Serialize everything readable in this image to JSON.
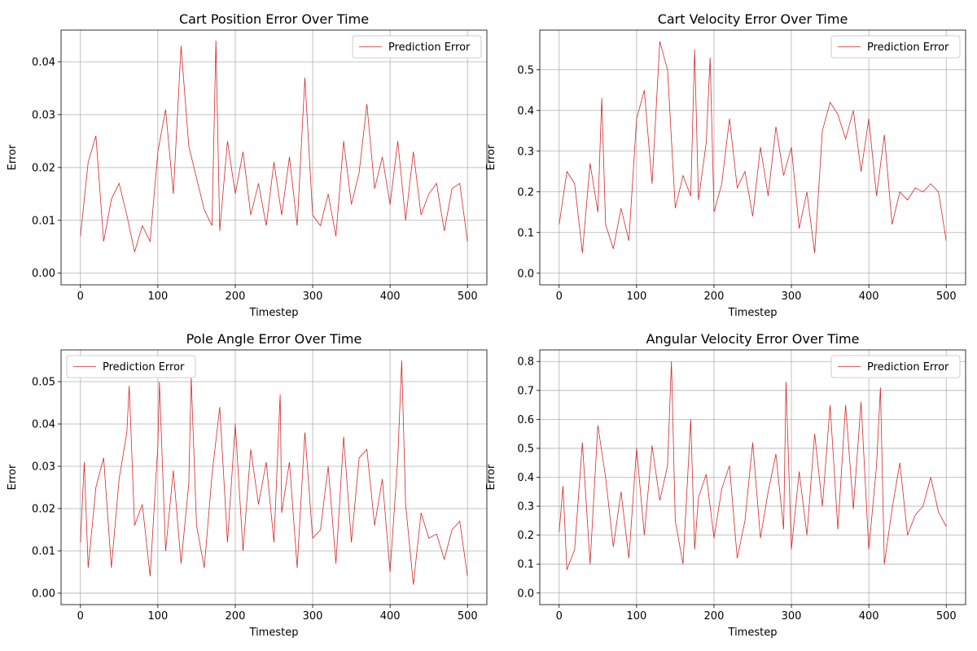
{
  "chart_data": [
    {
      "type": "line",
      "title": "Cart Position Error Over Time",
      "xlabel": "Timestep",
      "ylabel": "Error",
      "xlim": [
        -25,
        525
      ],
      "ylim": [
        -0.0022,
        0.046
      ],
      "x_ticks": [
        0,
        100,
        200,
        300,
        400,
        500
      ],
      "y_ticks": [
        0.0,
        0.01,
        0.02,
        0.03,
        0.04
      ],
      "y_tick_labels": [
        "0.00",
        "0.01",
        "0.02",
        "0.03",
        "0.04"
      ],
      "legend": "top-right",
      "grid": true,
      "series": [
        {
          "name": "Prediction Error",
          "color": "#d62728",
          "x": [
            0,
            10,
            20,
            30,
            40,
            50,
            60,
            70,
            80,
            90,
            100,
            110,
            120,
            130,
            140,
            150,
            160,
            170,
            175,
            180,
            190,
            200,
            210,
            220,
            230,
            240,
            250,
            260,
            270,
            280,
            290,
            300,
            310,
            320,
            330,
            340,
            350,
            360,
            370,
            380,
            390,
            400,
            410,
            420,
            430,
            440,
            450,
            460,
            470,
            480,
            490,
            500
          ],
          "y": [
            0.007,
            0.021,
            0.026,
            0.006,
            0.014,
            0.017,
            0.011,
            0.004,
            0.009,
            0.006,
            0.023,
            0.031,
            0.015,
            0.043,
            0.024,
            0.018,
            0.012,
            0.009,
            0.044,
            0.008,
            0.025,
            0.015,
            0.023,
            0.011,
            0.017,
            0.009,
            0.021,
            0.011,
            0.022,
            0.009,
            0.037,
            0.011,
            0.009,
            0.015,
            0.007,
            0.025,
            0.013,
            0.019,
            0.032,
            0.016,
            0.022,
            0.013,
            0.025,
            0.01,
            0.023,
            0.011,
            0.015,
            0.017,
            0.008,
            0.016,
            0.017,
            0.006
          ]
        }
      ]
    },
    {
      "type": "line",
      "title": "Cart Velocity Error Over Time",
      "xlabel": "Timestep",
      "ylabel": "Error",
      "xlim": [
        -25,
        525
      ],
      "ylim": [
        -0.0285,
        0.5975
      ],
      "x_ticks": [
        0,
        100,
        200,
        300,
        400,
        500
      ],
      "y_ticks": [
        0.0,
        0.1,
        0.2,
        0.3,
        0.4,
        0.5
      ],
      "y_tick_labels": [
        "0.0",
        "0.1",
        "0.2",
        "0.3",
        "0.4",
        "0.5"
      ],
      "legend": "top-right",
      "grid": true,
      "series": [
        {
          "name": "Prediction Error",
          "color": "#d62728",
          "x": [
            0,
            10,
            20,
            30,
            40,
            50,
            55,
            60,
            70,
            80,
            90,
            100,
            110,
            120,
            130,
            140,
            150,
            160,
            170,
            175,
            180,
            190,
            195,
            200,
            210,
            220,
            230,
            240,
            250,
            260,
            270,
            280,
            290,
            300,
            310,
            320,
            330,
            340,
            350,
            360,
            370,
            380,
            390,
            400,
            410,
            420,
            430,
            440,
            450,
            460,
            470,
            480,
            490,
            500
          ],
          "y": [
            0.12,
            0.25,
            0.22,
            0.05,
            0.27,
            0.15,
            0.43,
            0.12,
            0.06,
            0.16,
            0.08,
            0.38,
            0.45,
            0.22,
            0.57,
            0.5,
            0.16,
            0.24,
            0.19,
            0.55,
            0.18,
            0.32,
            0.53,
            0.15,
            0.22,
            0.38,
            0.21,
            0.25,
            0.14,
            0.31,
            0.19,
            0.36,
            0.24,
            0.31,
            0.11,
            0.2,
            0.05,
            0.35,
            0.42,
            0.39,
            0.33,
            0.4,
            0.25,
            0.38,
            0.19,
            0.34,
            0.12,
            0.2,
            0.18,
            0.21,
            0.2,
            0.22,
            0.2,
            0.08
          ]
        }
      ]
    },
    {
      "type": "line",
      "title": "Pole Angle Error Over Time",
      "xlabel": "Timestep",
      "ylabel": "Error",
      "xlim": [
        -25,
        525
      ],
      "ylim": [
        -0.0027,
        0.0575
      ],
      "x_ticks": [
        0,
        100,
        200,
        300,
        400,
        500
      ],
      "y_ticks": [
        0.0,
        0.01,
        0.02,
        0.03,
        0.04,
        0.05
      ],
      "y_tick_labels": [
        "0.00",
        "0.01",
        "0.02",
        "0.03",
        "0.04",
        "0.05"
      ],
      "legend": "top-left",
      "grid": true,
      "series": [
        {
          "name": "Prediction Error",
          "color": "#d62728",
          "x": [
            0,
            5,
            10,
            20,
            30,
            40,
            50,
            60,
            63,
            70,
            80,
            90,
            100,
            102,
            110,
            120,
            130,
            140,
            143,
            150,
            160,
            170,
            180,
            190,
            200,
            210,
            220,
            230,
            240,
            250,
            258,
            260,
            270,
            280,
            290,
            300,
            310,
            320,
            330,
            340,
            350,
            360,
            370,
            380,
            390,
            400,
            410,
            415,
            420,
            430,
            440,
            450,
            460,
            470,
            480,
            490,
            500
          ],
          "y": [
            0.012,
            0.031,
            0.006,
            0.025,
            0.032,
            0.006,
            0.027,
            0.038,
            0.049,
            0.016,
            0.021,
            0.004,
            0.035,
            0.05,
            0.01,
            0.029,
            0.007,
            0.026,
            0.051,
            0.016,
            0.006,
            0.028,
            0.044,
            0.012,
            0.04,
            0.01,
            0.034,
            0.021,
            0.031,
            0.012,
            0.047,
            0.019,
            0.031,
            0.006,
            0.038,
            0.013,
            0.015,
            0.03,
            0.007,
            0.037,
            0.012,
            0.032,
            0.034,
            0.016,
            0.027,
            0.005,
            0.032,
            0.055,
            0.021,
            0.002,
            0.019,
            0.013,
            0.014,
            0.008,
            0.015,
            0.017,
            0.004
          ]
        }
      ]
    },
    {
      "type": "line",
      "title": "Angular Velocity Error Over Time",
      "xlabel": "Timestep",
      "ylabel": "Error",
      "xlim": [
        -25,
        525
      ],
      "ylim": [
        -0.04,
        0.84
      ],
      "x_ticks": [
        0,
        100,
        200,
        300,
        400,
        500
      ],
      "y_ticks": [
        0.0,
        0.1,
        0.2,
        0.3,
        0.4,
        0.5,
        0.6,
        0.7,
        0.8
      ],
      "y_tick_labels": [
        "0.0",
        "0.1",
        "0.2",
        "0.3",
        "0.4",
        "0.5",
        "0.6",
        "0.7",
        "0.8"
      ],
      "legend": "top-right",
      "grid": true,
      "series": [
        {
          "name": "Prediction Error",
          "color": "#d62728",
          "x": [
            0,
            5,
            10,
            20,
            30,
            40,
            50,
            60,
            70,
            80,
            90,
            100,
            110,
            120,
            130,
            140,
            145,
            150,
            160,
            170,
            175,
            180,
            190,
            200,
            210,
            220,
            230,
            240,
            250,
            260,
            270,
            280,
            290,
            293,
            300,
            310,
            320,
            330,
            340,
            350,
            360,
            370,
            380,
            390,
            400,
            410,
            415,
            420,
            430,
            440,
            450,
            460,
            470,
            480,
            490,
            500
          ],
          "y": [
            0.21,
            0.37,
            0.08,
            0.15,
            0.52,
            0.1,
            0.58,
            0.4,
            0.16,
            0.35,
            0.12,
            0.5,
            0.2,
            0.51,
            0.32,
            0.44,
            0.8,
            0.25,
            0.1,
            0.6,
            0.15,
            0.33,
            0.41,
            0.19,
            0.36,
            0.44,
            0.12,
            0.25,
            0.52,
            0.19,
            0.35,
            0.48,
            0.22,
            0.73,
            0.15,
            0.42,
            0.2,
            0.55,
            0.3,
            0.65,
            0.22,
            0.65,
            0.29,
            0.66,
            0.15,
            0.44,
            0.71,
            0.1,
            0.29,
            0.45,
            0.2,
            0.27,
            0.3,
            0.4,
            0.28,
            0.23
          ]
        }
      ]
    }
  ]
}
